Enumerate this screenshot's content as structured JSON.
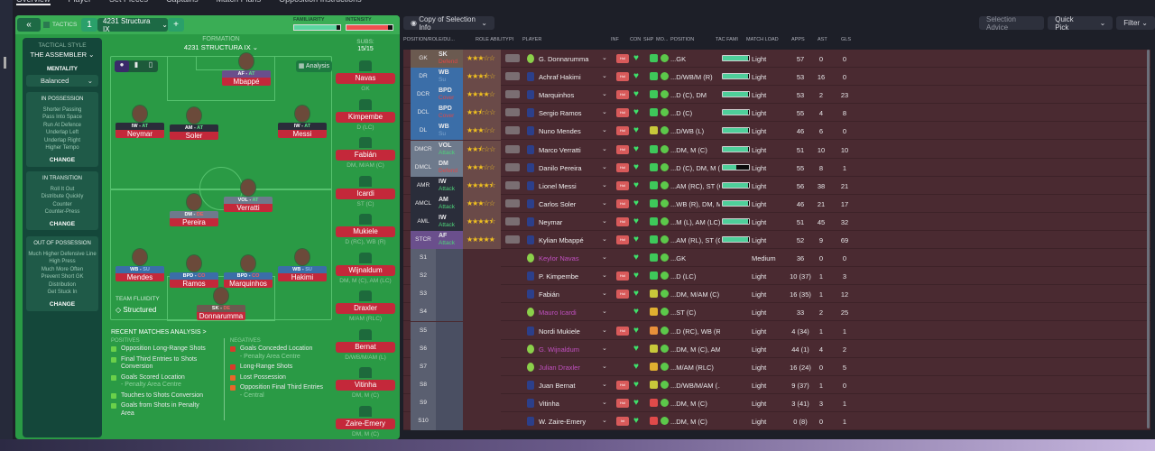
{
  "nav": {
    "tabs": [
      "Overview",
      "Player",
      "Set Pieces",
      "Captains",
      "Match Plans",
      "Opposition Instructions"
    ]
  },
  "tactics": {
    "back_icon": "double-chevron-left",
    "label": "TACTICS",
    "slot": "1",
    "name": "4231 Structura IX",
    "add": "+",
    "familiarity_label": "FAMILIARITY",
    "familiarity": 0.92,
    "intensity_label": "INTENSITY",
    "intensity": 0.9
  },
  "sidebar": {
    "style_label": "TACTICAL STYLE",
    "style": "THE ASSEMBLER",
    "mentality_label": "MENTALITY",
    "mentality": "Balanced",
    "sections": [
      {
        "title": "IN POSSESSION",
        "items": [
          "Shorter Passing",
          "Pass Into Space",
          "Run At Defence",
          "Underlap Left",
          "Underlap Right",
          "Higher Tempo"
        ],
        "change": "CHANGE"
      },
      {
        "title": "IN TRANSITION",
        "items": [
          "Roll It Out",
          "Distribute Quickly",
          "Counter",
          "Counter-Press"
        ],
        "change": "CHANGE"
      },
      {
        "title": "OUT OF POSSESSION",
        "items": [
          "Much Higher Defensive Line",
          "High Press",
          "Much More Often",
          "Prevent Short GK",
          "Distribution",
          "Get Stuck In"
        ],
        "change": "CHANGE"
      }
    ]
  },
  "formation": {
    "label": "FORMATION",
    "name": "4231 STRUCTURA IX",
    "subs_label": "SUBS:",
    "subs": "15/15",
    "analysis": "Analysis",
    "fluidity_label": "TEAM FLUIDITY",
    "fluidity": "Structured"
  },
  "pitch_players": [
    {
      "name": "Mbappé",
      "role": "AF",
      "duty": "AT",
      "color": "#6a4f8c"
    },
    {
      "name": "Neymar",
      "role": "IW",
      "duty": "AT",
      "color": "#2a2d3a"
    },
    {
      "name": "Soler",
      "role": "AM",
      "duty": "AT",
      "color": "#2a2d3a"
    },
    {
      "name": "Messi",
      "role": "IW",
      "duty": "AT",
      "color": "#2a2d3a"
    },
    {
      "name": "Verratti",
      "role": "VOL",
      "duty": "AT",
      "color": "#6e7a8c"
    },
    {
      "name": "Pereira",
      "role": "DM",
      "duty": "DE",
      "color": "#6e7a8c"
    },
    {
      "name": "Mendes",
      "role": "WB",
      "duty": "SU",
      "color": "#3b6ea8"
    },
    {
      "name": "Ramos",
      "role": "BPD",
      "duty": "CO",
      "color": "#3b6ea8"
    },
    {
      "name": "Marquinhos",
      "role": "BPD",
      "duty": "CO",
      "color": "#3b6ea8"
    },
    {
      "name": "Hakimi",
      "role": "WB",
      "duty": "SU",
      "color": "#3b6ea8"
    },
    {
      "name": "Donnarumma",
      "role": "SK",
      "duty": "DE",
      "color": "#6b5a50"
    }
  ],
  "bench": [
    {
      "name": "Navas",
      "pos": "GK"
    },
    {
      "name": "Kimpembe",
      "pos": "D (LC)"
    },
    {
      "name": "Fabián",
      "pos": "DM, M/AM (C)"
    },
    {
      "name": "Icardi",
      "pos": "ST (C)"
    },
    {
      "name": "Mukiele",
      "pos": "D (RC), WB (R)"
    },
    {
      "name": "Wijnaldum",
      "pos": "DM, M (C), AM (LC)"
    },
    {
      "name": "Draxler",
      "pos": "M/AM (RLC)"
    },
    {
      "name": "Bernat",
      "pos": "D/WB/M/AM (L)"
    },
    {
      "name": "Vitinha",
      "pos": "DM, M (C)"
    },
    {
      "name": "Zaire-Emery",
      "pos": "DM, M (C)"
    }
  ],
  "analysis": {
    "title": "RECENT MATCHES ANALYSIS >",
    "positives_label": "POSITIVES",
    "negatives_label": "NEGATIVES",
    "positives": [
      {
        "text": "Opposition Long-Range Shots",
        "sub": ""
      },
      {
        "text": "Final Third Entries to Shots Conversion",
        "sub": ""
      },
      {
        "text": "Goals Scored Location",
        "sub": "- Penalty Area Centre"
      },
      {
        "text": "Touches to Shots Conversion",
        "sub": ""
      },
      {
        "text": "Goals from Shots in Penalty Area",
        "sub": ""
      }
    ],
    "negatives": [
      {
        "text": "Goals Conceded Location",
        "sub": "- Penalty Area Centre",
        "color": "#d83a2a"
      },
      {
        "text": "Long-Range Shots",
        "sub": "",
        "color": "#d83a2a"
      },
      {
        "text": "Lost Possession",
        "sub": "",
        "color": "#e8672a"
      },
      {
        "text": "Opposition Final Third Entries",
        "sub": "- Central",
        "color": "#e8672a"
      }
    ]
  },
  "selection": {
    "view": "Copy of Selection Info",
    "advice": "Selection Advice",
    "quick_pick": "Quick Pick",
    "filter": "Filter"
  },
  "table": {
    "headers": [
      "POSITION/ROLE/DU...",
      "ROLE ABILITY",
      "PI",
      "PLAYER",
      "INF",
      "CON",
      "SHP",
      "MO...",
      "POSITION",
      "TAC FAMI",
      "MATCH LOAD",
      "APPS",
      "AST",
      "GLS"
    ],
    "rows": [
      {
        "pos": "GK",
        "role": "SK",
        "duty": "Defend",
        "ability": 3,
        "player": "G. Donnarumma",
        "inf": "Hol",
        "shp": "#3ec85a",
        "position": "...GK",
        "tac": 0.95,
        "load": "Light",
        "apps": "57",
        "ast": "0",
        "gls": "0"
      },
      {
        "pos": "DR",
        "role": "WB",
        "duty": "Su",
        "ability": 3.5,
        "player": "Achraf Hakimi",
        "inf": "Hol",
        "shp": "#3ec85a",
        "position": "...D/WB/M (R)",
        "tac": 0.95,
        "load": "Light",
        "apps": "53",
        "ast": "16",
        "gls": "0"
      },
      {
        "pos": "DCR",
        "role": "BPD",
        "duty": "Cover",
        "ability": 4,
        "player": "Marquinhos",
        "inf": "Hol",
        "shp": "#3ec85a",
        "position": "...D (C), DM",
        "tac": 0.95,
        "load": "Light",
        "apps": "53",
        "ast": "2",
        "gls": "23"
      },
      {
        "pos": "DCL",
        "role": "BPD",
        "duty": "Cover",
        "ability": 2.5,
        "player": "Sergio Ramos",
        "inf": "Hol",
        "shp": "#3ec85a",
        "position": "...D (C)",
        "tac": 0.95,
        "load": "Light",
        "apps": "55",
        "ast": "4",
        "gls": "8"
      },
      {
        "pos": "DL",
        "role": "WB",
        "duty": "Su",
        "ability": 3,
        "player": "Nuno Mendes",
        "inf": "Hol",
        "shp": "#c8c83a",
        "position": "...D/WB (L)",
        "tac": 0.95,
        "load": "Light",
        "apps": "46",
        "ast": "6",
        "gls": "0"
      },
      {
        "pos": "DMCR",
        "role": "VOL",
        "duty": "Attack",
        "ability": 2.5,
        "player": "Marco Verratti",
        "inf": "Hol",
        "shp": "#3ec85a",
        "position": "...DM, M (C)",
        "tac": 0.95,
        "load": "Light",
        "apps": "51",
        "ast": "10",
        "gls": "10"
      },
      {
        "pos": "DMCL",
        "role": "DM",
        "duty": "Defend",
        "ability": 3,
        "player": "Danilo Pereira",
        "inf": "Hol",
        "shp": "#3ec85a",
        "position": "...D (C), DM, M (C)",
        "tac": 0.5,
        "load": "Light",
        "apps": "55",
        "ast": "8",
        "gls": "1"
      },
      {
        "pos": "AMR",
        "role": "IW",
        "duty": "Attack",
        "ability": 4.5,
        "player": "Lionel Messi",
        "inf": "Hol",
        "shp": "#3ec85a",
        "position": "...AM (RC), ST (C)",
        "tac": 0.95,
        "load": "Light",
        "apps": "56",
        "ast": "38",
        "gls": "21"
      },
      {
        "pos": "AMCL",
        "role": "AM",
        "duty": "Attack",
        "ability": 3,
        "player": "Carlos Soler",
        "inf": "Hol",
        "shp": "#3ec85a",
        "position": "...WB (R), DM, M...",
        "tac": 0.95,
        "load": "Light",
        "apps": "46",
        "ast": "21",
        "gls": "17"
      },
      {
        "pos": "AML",
        "role": "IW",
        "duty": "Attack",
        "ability": 4.5,
        "player": "Neymar",
        "inf": "Hol",
        "shp": "#3ec85a",
        "position": "...M (L), AM (LC),...",
        "tac": 0.95,
        "load": "Light",
        "apps": "51",
        "ast": "45",
        "gls": "32"
      },
      {
        "pos": "STCR",
        "role": "AF",
        "duty": "Attack",
        "ability": 5,
        "player": "Kylian Mbappé",
        "inf": "Hol",
        "shp": "#3ec85a",
        "position": "...AM (RL), ST (C)",
        "tac": 0.95,
        "load": "Light",
        "apps": "52",
        "ast": "9",
        "gls": "69"
      },
      {
        "pos": "S1",
        "player": "Keylor Navas",
        "inf": "",
        "shp": "#3ec85a",
        "position": "...GK",
        "load": "Medium",
        "apps": "36",
        "ast": "0",
        "gls": "0",
        "unavailable": true
      },
      {
        "pos": "S2",
        "player": "P. Kimpembe",
        "inf": "Hol",
        "shp": "#3ec85a",
        "position": "...D (LC)",
        "load": "Light",
        "apps": "10 (37)",
        "ast": "1",
        "gls": "3"
      },
      {
        "pos": "S3",
        "player": "Fabián",
        "inf": "Hol",
        "shp": "#c8c83a",
        "position": "...DM, M/AM (C)",
        "load": "Light",
        "apps": "16 (35)",
        "ast": "1",
        "gls": "12"
      },
      {
        "pos": "S4",
        "player": "Mauro Icardi",
        "inf": "",
        "shp": "#e0b030",
        "position": "...ST (C)",
        "load": "Light",
        "apps": "33",
        "ast": "2",
        "gls": "25",
        "unavailable": true
      },
      {
        "pos": "S5",
        "player": "Nordi Mukiele",
        "inf": "Hol",
        "shp": "#e8903a",
        "position": "...D (RC), WB (R)",
        "load": "Light",
        "apps": "4 (34)",
        "ast": "1",
        "gls": "1"
      },
      {
        "pos": "S6",
        "player": "G. Wijnaldum",
        "inf": "",
        "shp": "#c8c83a",
        "position": "...DM, M (C), AM...",
        "load": "Light",
        "apps": "44 (1)",
        "ast": "4",
        "gls": "2",
        "unavailable": true
      },
      {
        "pos": "S7",
        "player": "Julian Draxler",
        "inf": "",
        "shp": "#e0b030",
        "position": "...M/AM (RLC)",
        "load": "Light",
        "apps": "16 (24)",
        "ast": "0",
        "gls": "5",
        "unavailable": true
      },
      {
        "pos": "S8",
        "player": "Juan Bernat",
        "inf": "Hol",
        "shp": "#c8c83a",
        "position": "...D/WB/M/AM (...",
        "load": "Light",
        "apps": "9 (37)",
        "ast": "1",
        "gls": "0"
      },
      {
        "pos": "S9",
        "player": "Vitinha",
        "inf": "Hol",
        "shp": "#e04a4a",
        "position": "...DM, M (C)",
        "load": "Light",
        "apps": "3 (41)",
        "ast": "3",
        "gls": "1"
      },
      {
        "pos": "S10",
        "player": "W. Zaire-Emery",
        "inf": "Int",
        "shp": "#e04a4a",
        "position": "...DM, M (C)",
        "load": "Light",
        "apps": "0 (8)",
        "ast": "0",
        "gls": "1"
      }
    ]
  }
}
